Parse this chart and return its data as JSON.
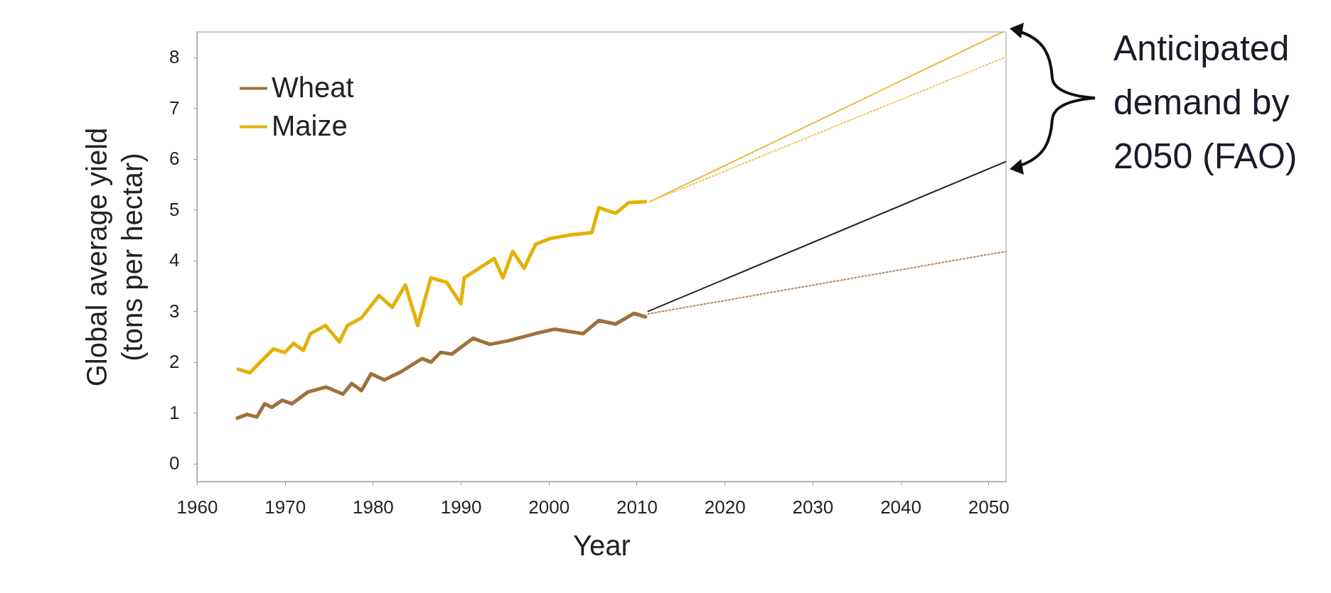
{
  "chart_data": {
    "type": "line",
    "xlabel": "Year",
    "ylabel": "Global average yield (tons per hectar)",
    "xlim": [
      1960,
      2052
    ],
    "ylim": [
      -0.35,
      8.5
    ],
    "xticks": [
      1960,
      1970,
      1980,
      1990,
      2000,
      2010,
      2020,
      2030,
      2040,
      2050
    ],
    "yticks": [
      0,
      1,
      2,
      3,
      4,
      5,
      6,
      7,
      8
    ],
    "grid": false,
    "legend": "top left",
    "marker": "none",
    "annotations": [
      "Anticipated demand by 2050 (FAO)"
    ],
    "series": [
      {
        "name": "Wheat",
        "color": "#a0703c",
        "line_style": "solid",
        "x": [
          1964.6,
          1965.7,
          1966.8,
          1967.7,
          1968.5,
          1969.7,
          1970.8,
          1972.6,
          1974.7,
          1976.6,
          1977.6,
          1978.7,
          1979.8,
          1981.3,
          1983.2,
          1985.6,
          1986.6,
          1987.7,
          1989.0,
          1991.4,
          1993.3,
          1995.4,
          1998.9,
          2000.7,
          2003.9,
          2005.7,
          2007.6,
          2009.7,
          2011.0
        ],
        "values": [
          0.9,
          0.97,
          0.92,
          1.18,
          1.11,
          1.25,
          1.18,
          1.41,
          1.51,
          1.37,
          1.58,
          1.44,
          1.77,
          1.65,
          1.81,
          2.07,
          2.0,
          2.19,
          2.16,
          2.47,
          2.35,
          2.42,
          2.58,
          2.65,
          2.56,
          2.82,
          2.75,
          2.96,
          2.89
        ]
      },
      {
        "name": "Maize",
        "color": "#e2b10a",
        "line_style": "solid",
        "x": [
          1964.7,
          1966.0,
          1968.7,
          1970.0,
          1971.0,
          1972.1,
          1972.9,
          1974.6,
          1976.2,
          1977.1,
          1978.7,
          1980.7,
          1982.2,
          1983.7,
          1985.1,
          1986.6,
          1988.4,
          1990.0,
          1990.4,
          1993.8,
          1994.8,
          1995.9,
          1997.2,
          1998.5,
          2000.1,
          2002.3,
          2004.9,
          2005.7,
          2007.6,
          2009.1,
          2011.0
        ],
        "values": [
          1.86,
          1.79,
          2.26,
          2.19,
          2.37,
          2.23,
          2.56,
          2.72,
          2.4,
          2.72,
          2.87,
          3.31,
          3.08,
          3.52,
          2.72,
          3.66,
          3.57,
          3.15,
          3.66,
          4.04,
          3.66,
          4.18,
          3.85,
          4.32,
          4.43,
          4.5,
          4.55,
          5.04,
          4.93,
          5.14,
          5.16
        ]
      },
      {
        "color": "#222222",
        "line_style": "solid",
        "x": [
          2011.3,
          2052
        ],
        "values": [
          3.0,
          5.95
        ]
      },
      {
        "color": "#b08860",
        "line_style": "dotted",
        "x": [
          2011.3,
          2052
        ],
        "values": [
          2.95,
          4.18
        ]
      },
      {
        "color": "#e6b840",
        "line_style": "solid",
        "x": [
          2011.5,
          2051.6
        ],
        "values": [
          5.16,
          8.5
        ]
      },
      {
        "color": "#ecc860",
        "line_style": "dotted",
        "x": [
          2011.5,
          2052
        ],
        "values": [
          5.16,
          8.01
        ]
      }
    ]
  }
}
